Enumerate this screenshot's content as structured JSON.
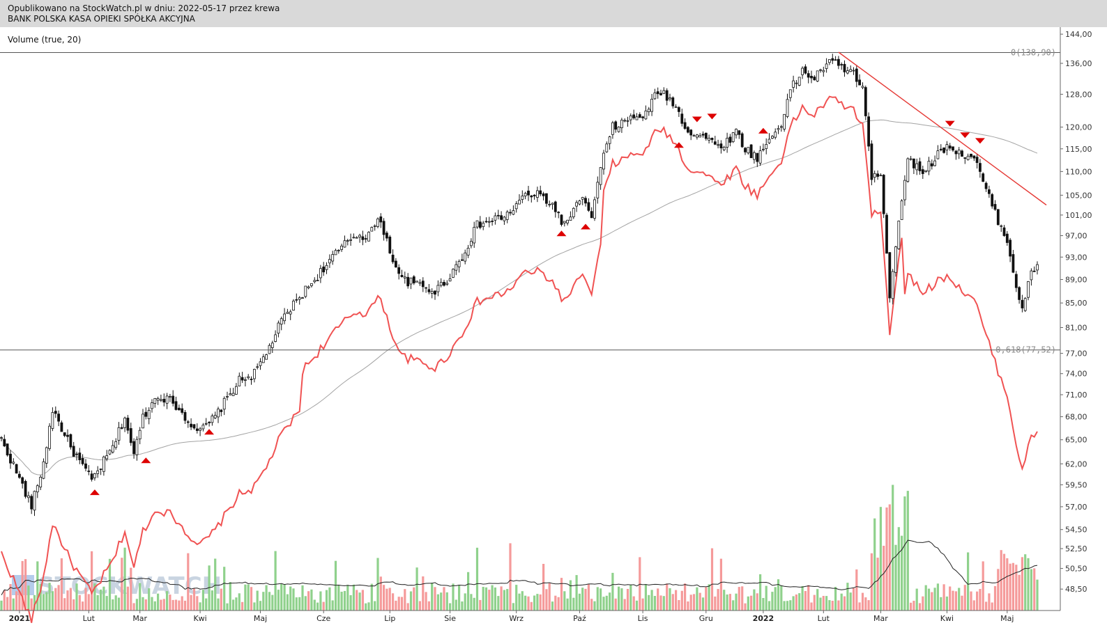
{
  "header": {
    "line1": "Opublikowano na StockWatch.pl w dniu: 2022-05-17 przez krewa",
    "line2": "BANK POLSKA KASA OPIEKI SPÓŁKA AKCYJNA"
  },
  "indicator_label": "Volume (true, 20)",
  "watermark": "STOCKWATCH",
  "colors": {
    "up_volume": "#8fd18c",
    "down_volume": "#f59a9a",
    "red_line": "#f05252",
    "trendline": "#e53935",
    "ma_line": "#a3a3a3",
    "markers": "#dd0000",
    "candles": "#111111"
  },
  "chart_data": {
    "type": "candlestick",
    "title": "BANK POLSKA KASA OPIEKI SPÓŁKA AKCYJNA",
    "y_axis": {
      "position": "right",
      "scale": "log",
      "ylim": [
        46.5,
        146
      ],
      "ticks": [
        "144,00",
        "136,00",
        "128,00",
        "120,00",
        "115,00",
        "110,00",
        "105,00",
        "101,00",
        "97,00",
        "93,00",
        "89,00",
        "85,00",
        "81,00",
        "77,00",
        "74,00",
        "71,00",
        "68,00",
        "65,00",
        "62,00",
        "59,50",
        "57,00",
        "54,50",
        "52,50",
        "50,50",
        "48,50"
      ]
    },
    "x_axis": {
      "labels": [
        "2021",
        "Lut",
        "Mar",
        "Kwi",
        "Maj",
        "Cze",
        "Lip",
        "Sie",
        "Wrz",
        "Paź",
        "Lis",
        "Gru",
        "2022",
        "Lut",
        "Mar",
        "Kwi",
        "Maj"
      ],
      "index": [
        6,
        29,
        46,
        66,
        86,
        107,
        129,
        149,
        171,
        192,
        213,
        234,
        253,
        273,
        292,
        314,
        334
      ],
      "n_sessions": 345
    },
    "price_waypoints": [
      [
        0,
        65
      ],
      [
        10,
        57
      ],
      [
        14,
        62
      ],
      [
        17,
        69
      ],
      [
        23,
        64
      ],
      [
        30,
        60
      ],
      [
        37,
        64
      ],
      [
        41,
        68
      ],
      [
        44,
        63
      ],
      [
        47,
        68
      ],
      [
        52,
        71
      ],
      [
        57,
        70
      ],
      [
        62,
        67.5
      ],
      [
        66,
        66
      ],
      [
        71,
        68
      ],
      [
        79,
        73
      ],
      [
        84,
        74
      ],
      [
        88,
        77
      ],
      [
        93,
        82
      ],
      [
        99,
        86
      ],
      [
        104,
        89
      ],
      [
        110,
        93
      ],
      [
        117,
        97
      ],
      [
        121,
        97
      ],
      [
        126,
        100
      ],
      [
        129,
        94
      ],
      [
        133,
        89
      ],
      [
        139,
        88
      ],
      [
        144,
        87
      ],
      [
        148,
        89
      ],
      [
        153,
        93
      ],
      [
        158,
        99
      ],
      [
        163,
        100
      ],
      [
        168,
        101
      ],
      [
        174,
        105
      ],
      [
        179,
        105
      ],
      [
        183,
        103
      ],
      [
        187,
        99
      ],
      [
        191,
        103
      ],
      [
        194,
        104
      ],
      [
        196,
        100
      ],
      [
        199,
        111
      ],
      [
        203,
        120
      ],
      [
        209,
        122
      ],
      [
        214,
        123
      ],
      [
        218,
        129
      ],
      [
        223,
        126
      ],
      [
        228,
        119
      ],
      [
        233,
        118
      ],
      [
        237,
        116
      ],
      [
        240,
        116
      ],
      [
        244,
        119
      ],
      [
        247,
        115
      ],
      [
        251,
        113
      ],
      [
        256,
        118
      ],
      [
        259,
        121
      ],
      [
        262,
        129
      ],
      [
        266,
        134
      ],
      [
        270,
        132
      ],
      [
        274,
        136
      ],
      [
        277,
        136
      ],
      [
        282,
        134
      ],
      [
        286,
        130
      ],
      [
        289,
        108
      ],
      [
        292,
        110
      ],
      [
        295,
        86
      ],
      [
        298,
        100
      ],
      [
        301,
        113
      ],
      [
        305,
        110
      ],
      [
        309,
        112
      ],
      [
        314,
        116
      ],
      [
        318,
        114
      ],
      [
        323,
        113
      ],
      [
        327,
        106
      ],
      [
        331,
        100
      ],
      [
        334,
        96
      ],
      [
        337,
        88
      ],
      [
        339,
        84
      ],
      [
        342,
        90
      ],
      [
        344,
        91
      ]
    ],
    "annotations": {
      "levels": [
        {
          "label": "0(138,90)",
          "value": 138.9
        },
        {
          "label": "0,618(77,52)",
          "value": 77.52
        }
      ],
      "trendline": [
        [
          278,
          139
        ],
        [
          347,
          103
        ]
      ],
      "arrows_up": [
        [
          31,
          58.8
        ],
        [
          48,
          62.6
        ],
        [
          69,
          66.2
        ],
        [
          186,
          97.7
        ],
        [
          194,
          99
        ],
        [
          225,
          116.2
        ],
        [
          253,
          119.5
        ]
      ],
      "arrows_down": [
        [
          231,
          121.5
        ],
        [
          236,
          122.2
        ],
        [
          315,
          120.5
        ],
        [
          320,
          117.8
        ],
        [
          325,
          116.5
        ]
      ]
    }
  }
}
